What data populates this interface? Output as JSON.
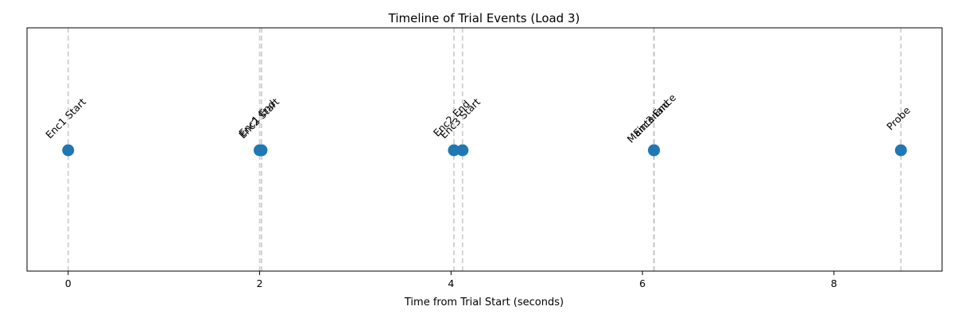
{
  "chart_data": {
    "type": "scatter",
    "title": "Timeline of Trial Events (Load 3)",
    "xlabel": "Time from Trial Start (seconds)",
    "ylabel": "",
    "xlim": [
      -0.43,
      9.13
    ],
    "x_ticks": [
      0,
      2,
      4,
      6,
      8
    ],
    "y_axis_visible": false,
    "grid": false,
    "marker_color": "#1f77b4",
    "vline_color": "#bbbbbb",
    "events": [
      {
        "label": "Enc1 Start",
        "x": 0.0
      },
      {
        "label": "Enc1 End",
        "x": 2.0
      },
      {
        "label": "Enc2 Start",
        "x": 2.02
      },
      {
        "label": "Enc2 End",
        "x": 4.03
      },
      {
        "label": "Enc3 Start",
        "x": 4.12
      },
      {
        "label": "Enc3 End",
        "x": 6.12
      },
      {
        "label": "Maintenance",
        "x": 6.12
      },
      {
        "label": "Probe",
        "x": 8.7
      }
    ]
  }
}
